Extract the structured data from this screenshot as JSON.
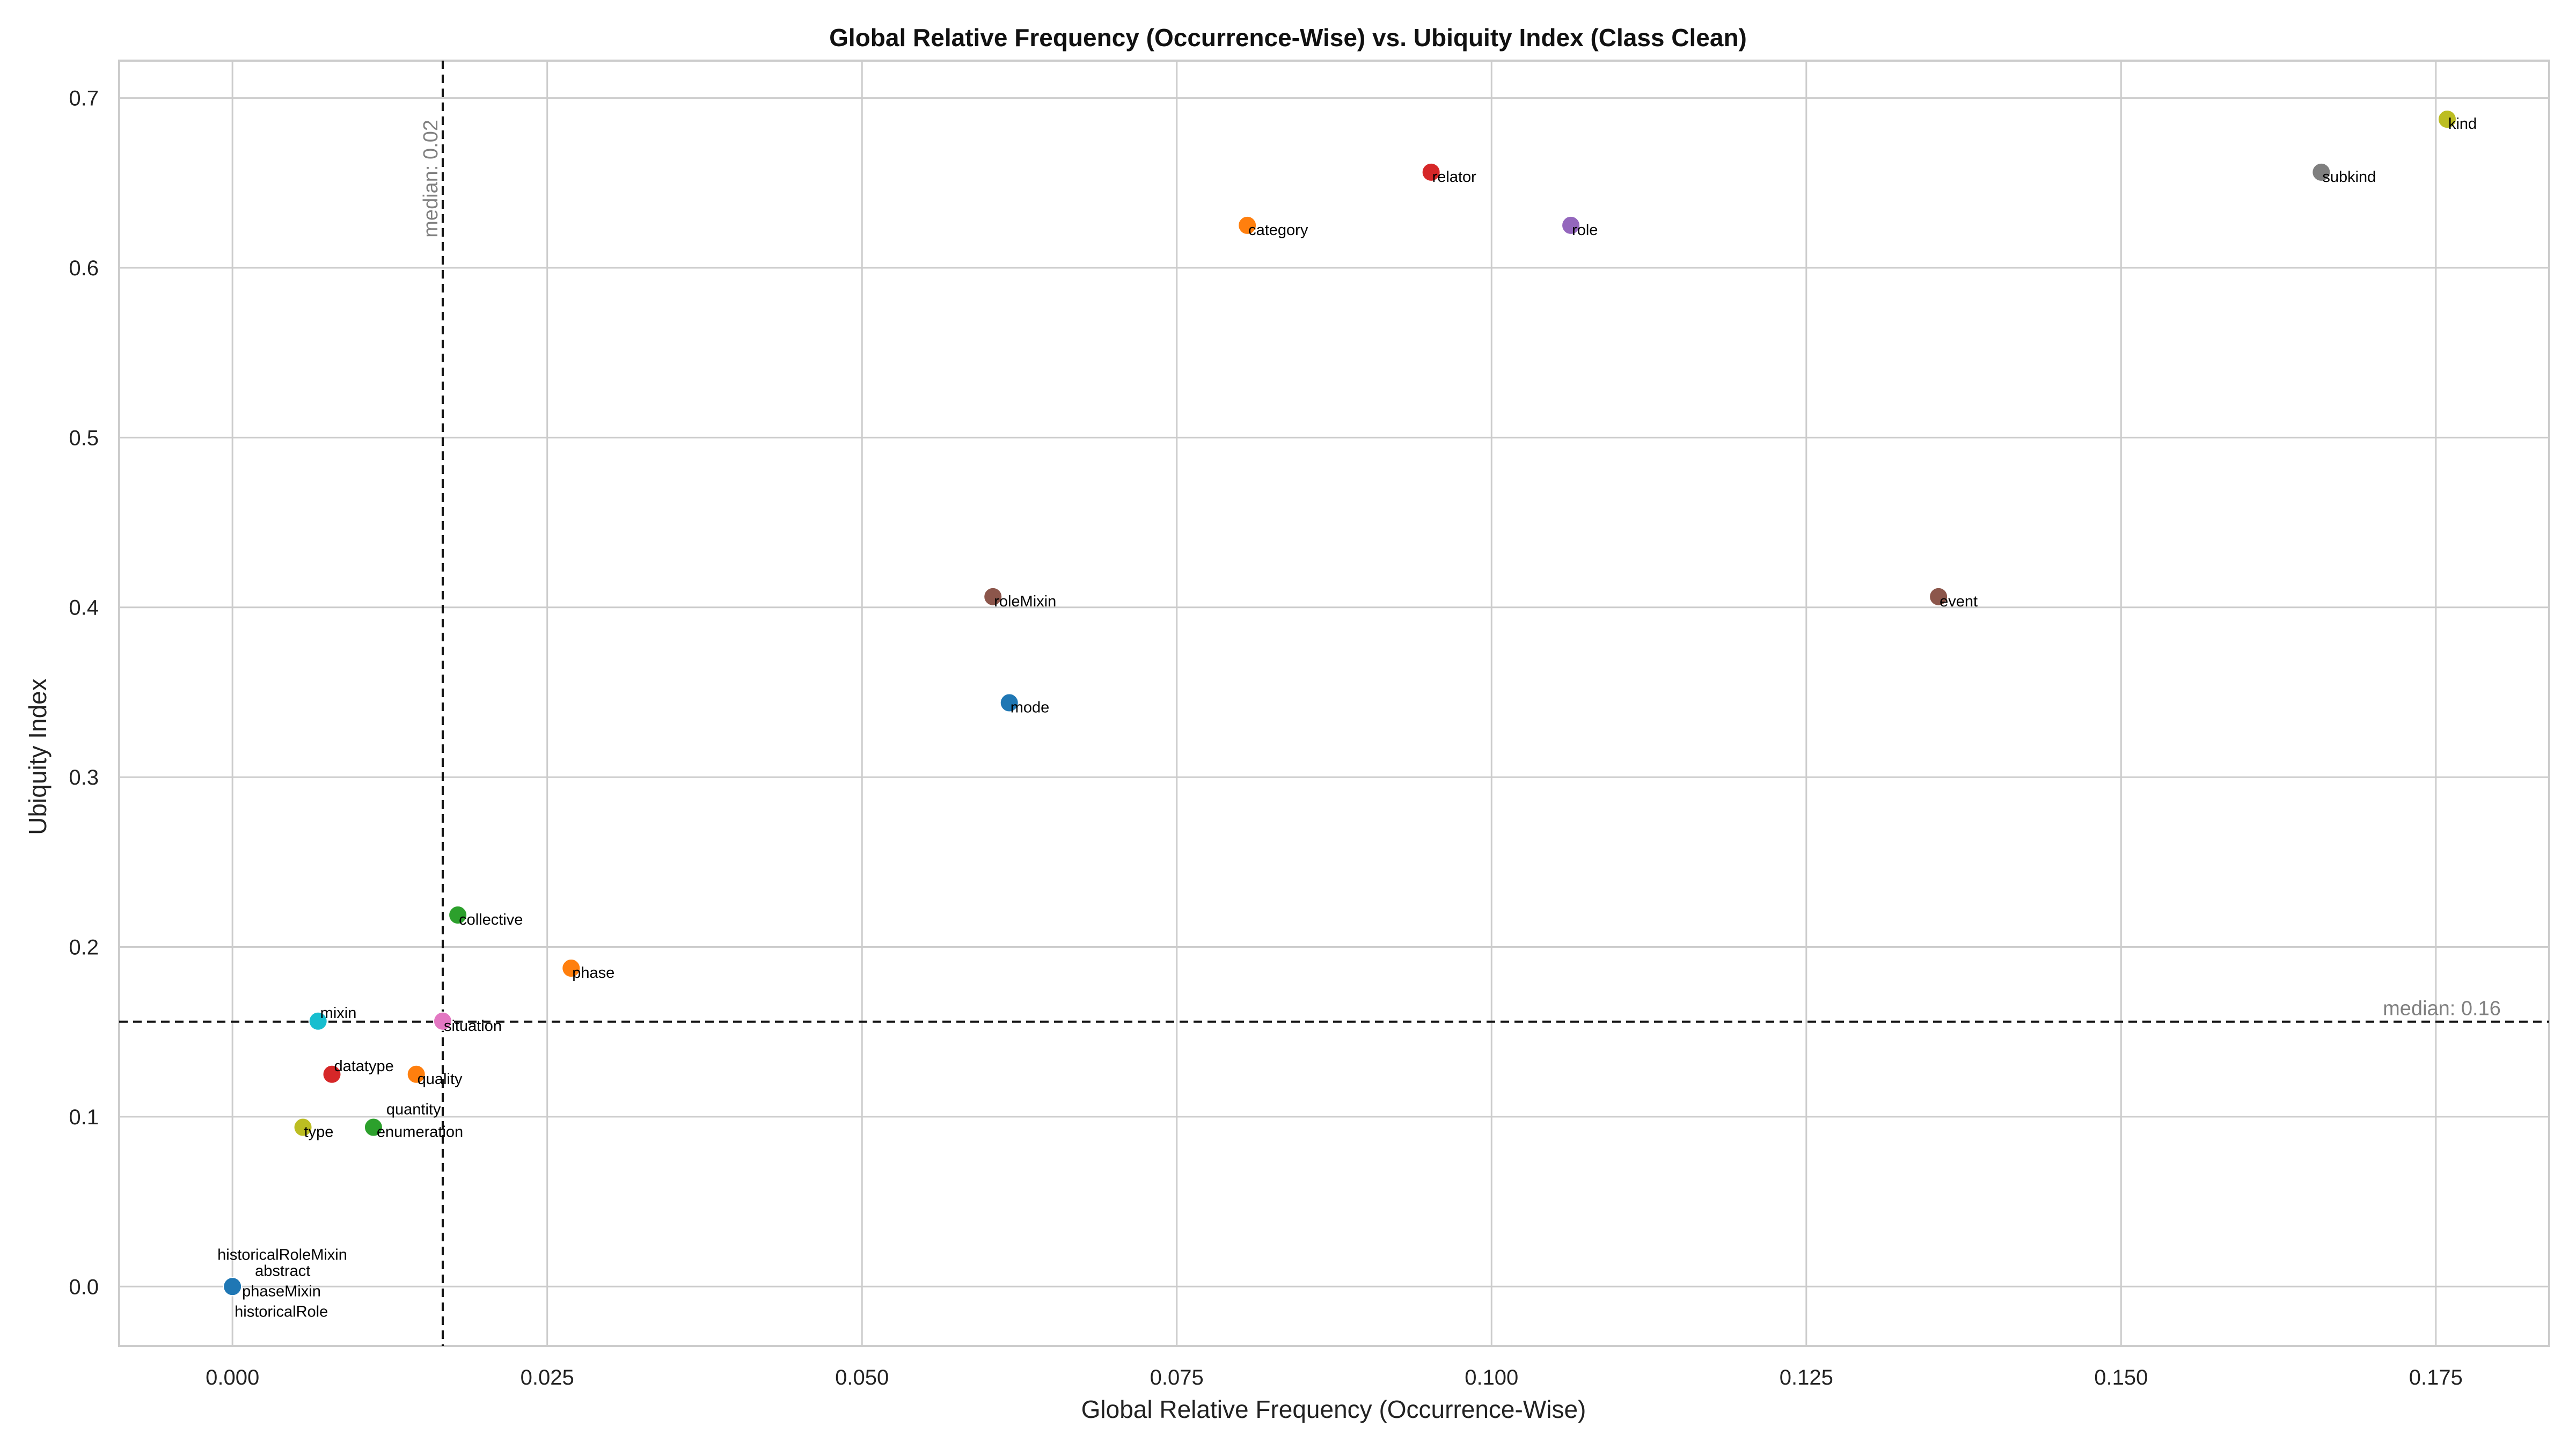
{
  "chart_data": {
    "type": "scatter",
    "title": "Global Relative Frequency (Occurrence-Wise) vs. Ubiquity Index (Class Clean)",
    "xlabel": "Global Relative Frequency (Occurrence-Wise)",
    "ylabel": "Ubiquity Index",
    "xlim": [
      -0.009,
      0.184
    ],
    "ylim": [
      -0.035,
      0.722
    ],
    "xticks": [
      0.0,
      0.025,
      0.05,
      0.075,
      0.1,
      0.125,
      0.15,
      0.175
    ],
    "xtick_labels": [
      "0.000",
      "0.025",
      "0.050",
      "0.075",
      "0.100",
      "0.125",
      "0.150",
      "0.175"
    ],
    "yticks": [
      0.0,
      0.1,
      0.2,
      0.3,
      0.4,
      0.5,
      0.6,
      0.7
    ],
    "ytick_labels": [
      "0.0",
      "0.1",
      "0.2",
      "0.3",
      "0.4",
      "0.5",
      "0.6",
      "0.7"
    ],
    "grid": true,
    "legend": "none",
    "medians": {
      "x": {
        "value": 0.0167,
        "label": "median: 0.02"
      },
      "y": {
        "value": 0.156,
        "label": "median: 0.16"
      }
    },
    "points": [
      {
        "label": "kind",
        "x": 0.1759,
        "y": 0.6875,
        "color": "#bcbd22"
      },
      {
        "label": "subkind",
        "x": 0.1659,
        "y": 0.6563,
        "color": "#7f7f7f"
      },
      {
        "label": "relator",
        "x": 0.0952,
        "y": 0.6563,
        "color": "#d62728"
      },
      {
        "label": "role",
        "x": 0.1063,
        "y": 0.625,
        "color": "#9467bd"
      },
      {
        "label": "category",
        "x": 0.0806,
        "y": 0.625,
        "color": "#ff7f0e"
      },
      {
        "label": "roleMixin",
        "x": 0.0604,
        "y": 0.4063,
        "color": "#8c564b"
      },
      {
        "label": "event",
        "x": 0.1355,
        "y": 0.4063,
        "color": "#8c564b"
      },
      {
        "label": "mode",
        "x": 0.0617,
        "y": 0.3438,
        "color": "#1f77b4"
      },
      {
        "label": "collective",
        "x": 0.0179,
        "y": 0.2188,
        "color": "#2ca02c"
      },
      {
        "label": "phase",
        "x": 0.0269,
        "y": 0.1875,
        "color": "#ff7f0e"
      },
      {
        "label": "mixin",
        "x": 0.0068,
        "y": 0.1563,
        "color": "#17becf"
      },
      {
        "label": "situation",
        "x": 0.0167,
        "y": 0.1563,
        "color": "#e377c2"
      },
      {
        "label": "datatype",
        "x": 0.0079,
        "y": 0.125,
        "color": "#d62728"
      },
      {
        "label": "quality",
        "x": 0.0146,
        "y": 0.125,
        "color": "#ff7f0e"
      },
      {
        "label": "type",
        "x": 0.0056,
        "y": 0.0938,
        "color": "#bcbd22"
      },
      {
        "label": "enumeration",
        "x": 0.0112,
        "y": 0.0938,
        "color": "#2ca02c"
      },
      {
        "label": "quantity",
        "x": 0.0112,
        "y": 0.0938,
        "color": "#2ca02c"
      },
      {
        "label": "historicalRoleMixin",
        "x": 0.0,
        "y": 0.0,
        "color": "#1f77b4"
      },
      {
        "label": "abstract",
        "x": 0.0,
        "y": 0.0,
        "color": "#1f77b4"
      },
      {
        "label": "phaseMixin",
        "x": 0.0,
        "y": 0.0,
        "color": "#1f77b4"
      },
      {
        "label": "historicalRole",
        "x": 0.0,
        "y": 0.0,
        "color": "#1f77b4"
      }
    ]
  }
}
